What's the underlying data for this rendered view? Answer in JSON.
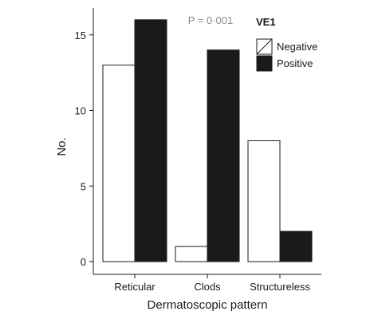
{
  "chart_data": {
    "type": "bar",
    "categories": [
      "Reticular",
      "Clods",
      "Structureless"
    ],
    "series": [
      {
        "name": "Negative",
        "values": [
          13,
          1,
          8
        ],
        "color": "#ffffff"
      },
      {
        "name": "Positive",
        "values": [
          16,
          14,
          2
        ],
        "color": "#1a1a1a"
      }
    ],
    "xlabel": "Dermatoscopic pattern",
    "ylabel": "No.",
    "ylim": [
      0,
      17
    ],
    "yticks": [
      0,
      5,
      10,
      15
    ],
    "annotation": "P = 0·001",
    "legend": {
      "title": "VE1",
      "placement": "top-right"
    },
    "grid": false
  }
}
